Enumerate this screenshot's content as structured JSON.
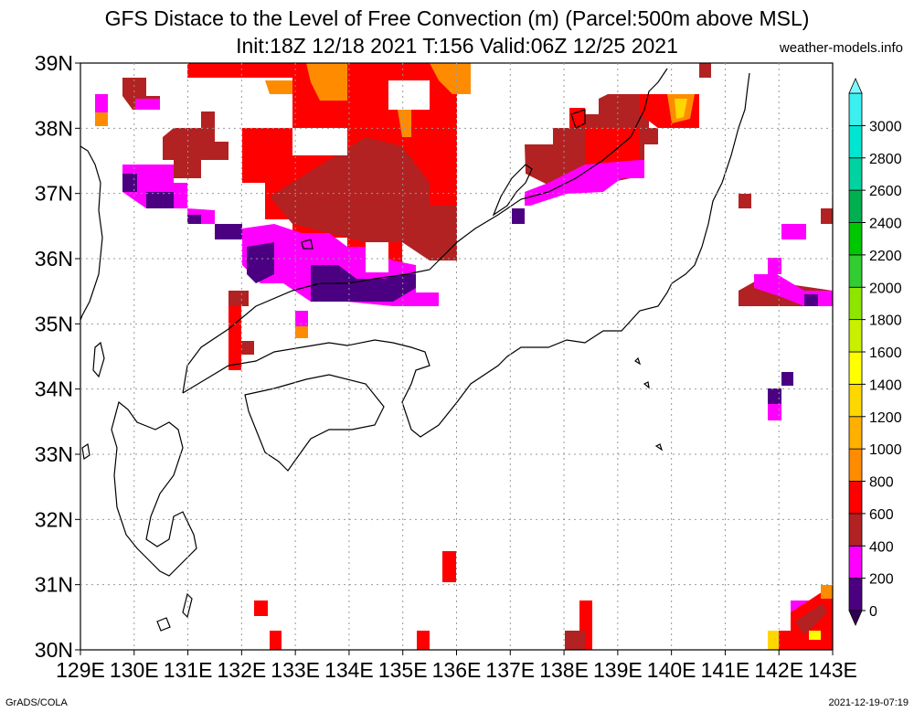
{
  "title_line1": "GFS Distace to the Level of Free Convection (m) (Parcel:500m above MSL)",
  "title_line2": "Init:18Z 12/18 2021 T:156 Valid:06Z 12/25 2021",
  "credit": "weather-models.info",
  "footer_left": "GrADS/COLA",
  "footer_right": "2021-12-19-07:19",
  "map": {
    "lon_range": [
      129,
      143
    ],
    "lat_range": [
      30,
      39
    ],
    "grid": true,
    "lon_labels": [
      "129E",
      "130E",
      "131E",
      "132E",
      "133E",
      "134E",
      "135E",
      "136E",
      "137E",
      "138E",
      "139E",
      "140E",
      "141E",
      "142E",
      "143E"
    ],
    "lat_labels": [
      "30N",
      "31N",
      "32N",
      "33N",
      "34N",
      "35N",
      "36N",
      "37N",
      "38N",
      "39N"
    ]
  },
  "colorbar": {
    "labels": [
      "0",
      "200",
      "400",
      "600",
      "800",
      "1000",
      "1200",
      "1400",
      "1600",
      "1800",
      "2000",
      "2200",
      "2400",
      "2600",
      "2800",
      "3000"
    ],
    "colors": [
      "#4b0082",
      "#ff00ff",
      "#b22222",
      "#ff0000",
      "#ff8c00",
      "#ffb000",
      "#ffd700",
      "#ffff00",
      "#c8f000",
      "#8ce600",
      "#32cd32",
      "#00c800",
      "#00b050",
      "#00d2a0",
      "#00e6d2",
      "#3cf0f0"
    ]
  }
}
